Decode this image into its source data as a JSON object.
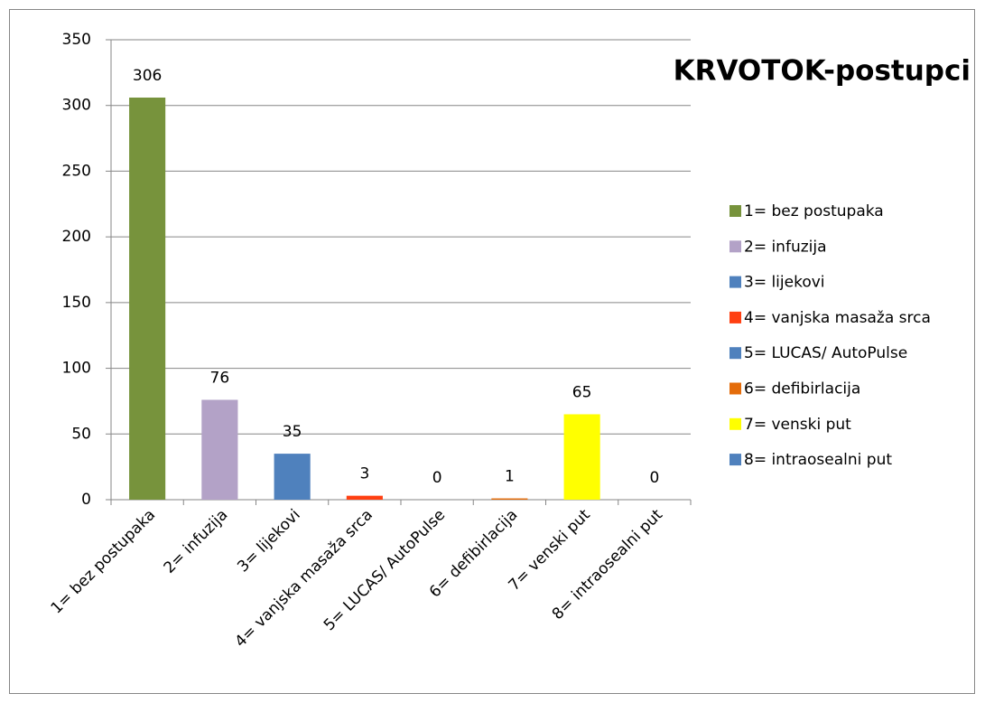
{
  "chart_data": {
    "type": "bar",
    "title": "KRVOTOK-postupci",
    "categories": [
      "1= bez postupaka",
      "2= infuzija",
      "3= lijekovi",
      "4= vanjska masaža srca",
      "5= LUCAS/ AutoPulse",
      "6= defibirlacija",
      "7= venski put",
      "8= intraosealni put"
    ],
    "values": [
      306,
      76,
      35,
      3,
      0,
      1,
      65,
      0
    ],
    "colors": [
      "#77933c",
      "#b3a2c7",
      "#4f81bd",
      "#ff3f11",
      "#4f81bd",
      "#e46c0a",
      "#ffff00",
      "#4f81bd"
    ],
    "ylim": [
      0,
      350
    ],
    "yticks": [
      0,
      50,
      100,
      150,
      200,
      250,
      300,
      350
    ],
    "grid": true,
    "legend": "right"
  }
}
